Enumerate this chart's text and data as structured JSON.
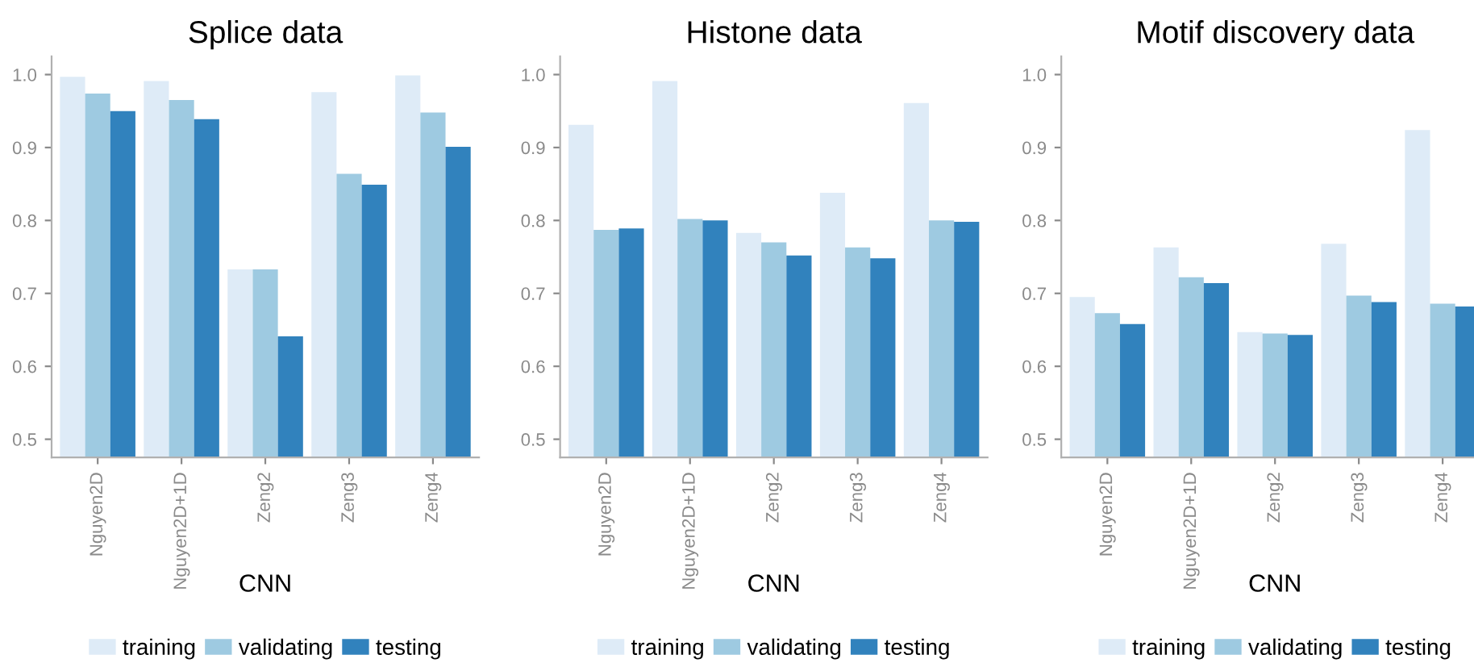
{
  "chart_data": [
    {
      "type": "bar",
      "title": "Splice data",
      "xlabel": "CNN",
      "categories": [
        "Nguyen2D",
        "Nguyen2D+1D",
        "Zeng2",
        "Zeng3",
        "Zeng4"
      ],
      "ylim": [
        0.475,
        1.025
      ],
      "yticks": [
        {
          "value": 0.5,
          "label": "0.5"
        },
        {
          "value": 0.6,
          "label": "0.6"
        },
        {
          "value": 0.7,
          "label": "0.7"
        },
        {
          "value": 0.8,
          "label": "0.8"
        },
        {
          "value": 0.9,
          "label": "0.9"
        },
        {
          "value": 1.0,
          "label": "1.0"
        }
      ],
      "grid": false,
      "legend": "bottom",
      "series": [
        {
          "name": "training",
          "color": "#deebf7",
          "values": [
            0.997,
            0.991,
            0.733,
            0.976,
            0.999
          ]
        },
        {
          "name": "validating",
          "color": "#9ecae1",
          "values": [
            0.974,
            0.965,
            0.733,
            0.864,
            0.948
          ]
        },
        {
          "name": "testing",
          "color": "#3182bd",
          "values": [
            0.95,
            0.939,
            0.641,
            0.849,
            0.901
          ]
        }
      ]
    },
    {
      "type": "bar",
      "title": "Histone data",
      "xlabel": "CNN",
      "categories": [
        "Nguyen2D",
        "Nguyen2D+1D",
        "Zeng2",
        "Zeng3",
        "Zeng4"
      ],
      "ylim": [
        0.475,
        1.025
      ],
      "yticks": [
        {
          "value": 0.5,
          "label": "0.5"
        },
        {
          "value": 0.6,
          "label": "0.6"
        },
        {
          "value": 0.7,
          "label": "0.7"
        },
        {
          "value": 0.8,
          "label": "0.8"
        },
        {
          "value": 0.9,
          "label": "0.9"
        },
        {
          "value": 1.0,
          "label": "1.0"
        }
      ],
      "grid": false,
      "legend": "bottom",
      "series": [
        {
          "name": "training",
          "color": "#deebf7",
          "values": [
            0.931,
            0.991,
            0.783,
            0.838,
            0.961
          ]
        },
        {
          "name": "validating",
          "color": "#9ecae1",
          "values": [
            0.787,
            0.802,
            0.77,
            0.763,
            0.8
          ]
        },
        {
          "name": "testing",
          "color": "#3182bd",
          "values": [
            0.789,
            0.8,
            0.752,
            0.748,
            0.798
          ]
        }
      ]
    },
    {
      "type": "bar",
      "title": "Motif discovery data",
      "xlabel": "CNN",
      "categories": [
        "Nguyen2D",
        "Nguyen2D+1D",
        "Zeng2",
        "Zeng3",
        "Zeng4"
      ],
      "ylim": [
        0.475,
        1.025
      ],
      "yticks": [
        {
          "value": 0.5,
          "label": "0.5"
        },
        {
          "value": 0.6,
          "label": "0.6"
        },
        {
          "value": 0.7,
          "label": "0.7"
        },
        {
          "value": 0.8,
          "label": "0.8"
        },
        {
          "value": 0.9,
          "label": "0.9"
        },
        {
          "value": 1.0,
          "label": "1.0"
        }
      ],
      "grid": false,
      "legend": "bottom",
      "series": [
        {
          "name": "training",
          "color": "#deebf7",
          "values": [
            0.695,
            0.763,
            0.647,
            0.768,
            0.924
          ]
        },
        {
          "name": "validating",
          "color": "#9ecae1",
          "values": [
            0.673,
            0.722,
            0.645,
            0.697,
            0.686
          ]
        },
        {
          "name": "testing",
          "color": "#3182bd",
          "values": [
            0.658,
            0.714,
            0.643,
            0.688,
            0.682
          ]
        }
      ]
    }
  ]
}
